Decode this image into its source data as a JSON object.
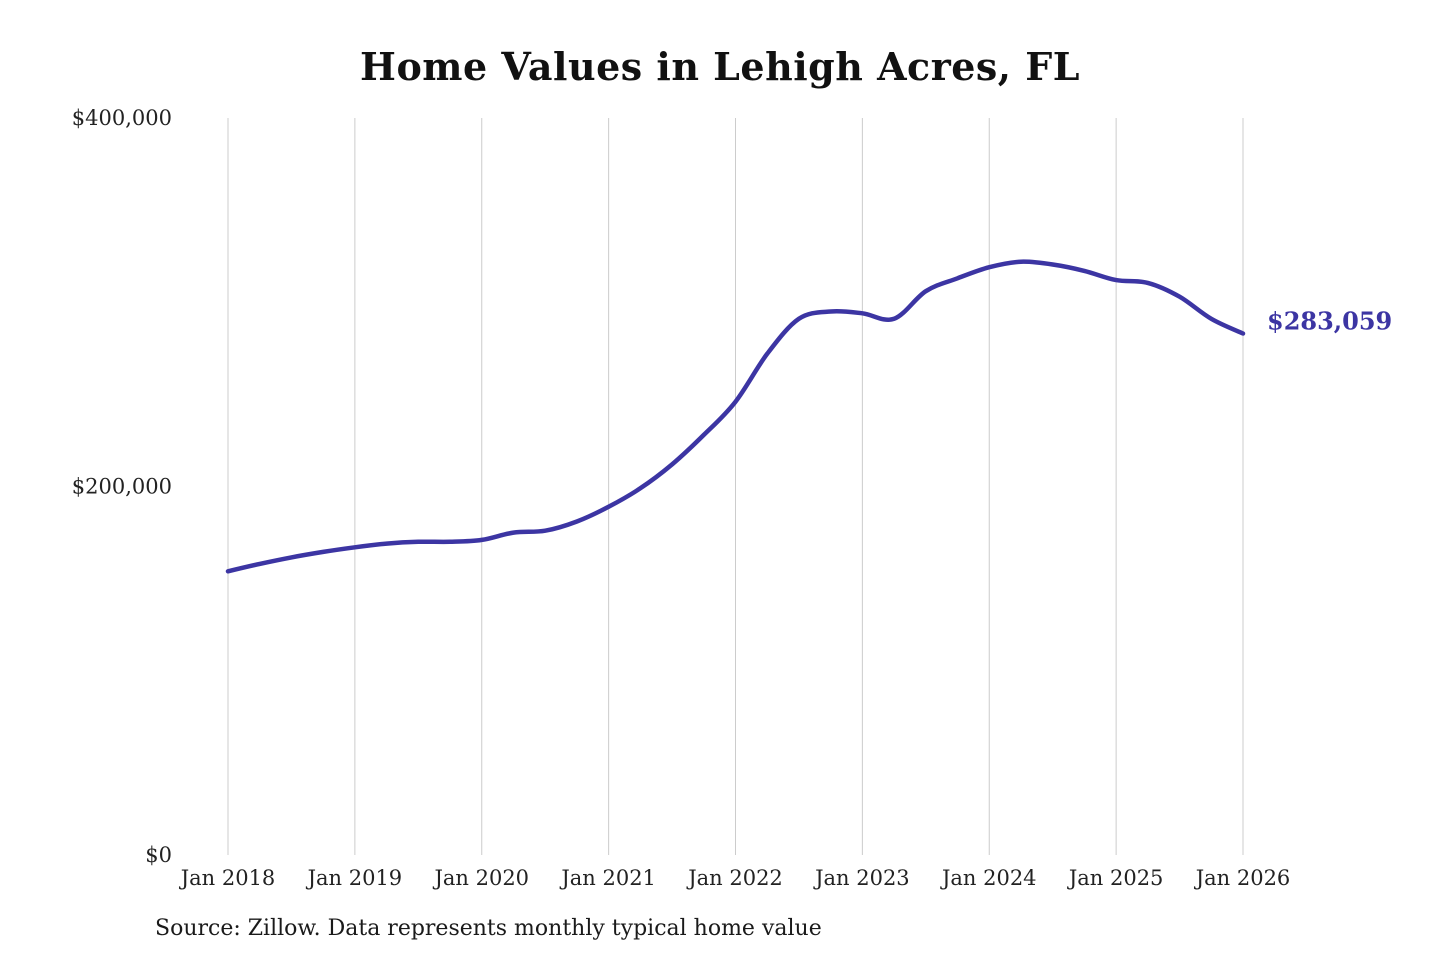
{
  "chart_data": {
    "type": "line",
    "title": "Home Values in Lehigh Acres, FL",
    "source": "Source: Zillow. Data represents monthly typical home value",
    "end_label": "$283,059",
    "end_value": 283059,
    "line_color": "#3c35a3",
    "grid_color": "#cccccc",
    "grid": "vertical-only",
    "legend": "none",
    "xlim": [
      2018,
      2026
    ],
    "ylim": [
      0,
      400000
    ],
    "xticks": [
      2018,
      2019,
      2020,
      2021,
      2022,
      2023,
      2024,
      2025,
      2026
    ],
    "xtick_labels": [
      "Jan 2018",
      "Jan 2019",
      "Jan 2020",
      "Jan 2021",
      "Jan 2022",
      "Jan 2023",
      "Jan 2024",
      "Jan 2025",
      "Jan 2026"
    ],
    "yticks": [
      0,
      200000,
      400000
    ],
    "ytick_labels": [
      "$0",
      "$200,000",
      "$400,000"
    ],
    "series": [
      {
        "name": "Typical home value",
        "x": [
          2018.0,
          2018.25,
          2018.5,
          2018.75,
          2019.0,
          2019.25,
          2019.5,
          2019.75,
          2020.0,
          2020.25,
          2020.5,
          2020.75,
          2021.0,
          2021.25,
          2021.5,
          2021.75,
          2022.0,
          2022.25,
          2022.5,
          2022.75,
          2023.0,
          2023.25,
          2023.5,
          2023.75,
          2024.0,
          2024.25,
          2024.5,
          2024.75,
          2025.0,
          2025.25,
          2025.5,
          2025.75,
          2026.0
        ],
        "values": [
          154000,
          158000,
          161500,
          164500,
          167000,
          169000,
          170000,
          170000,
          171000,
          175000,
          176000,
          181000,
          189000,
          199000,
          212000,
          228000,
          246000,
          272000,
          291000,
          295000,
          294000,
          291000,
          306000,
          313000,
          319000,
          322000,
          320500,
          317000,
          312000,
          310500,
          303000,
          291000,
          283059
        ]
      }
    ]
  }
}
